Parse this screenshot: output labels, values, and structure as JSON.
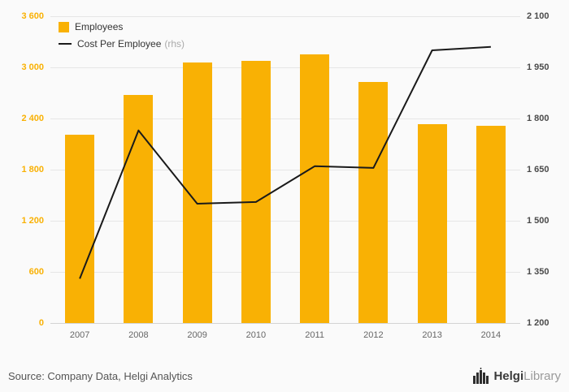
{
  "chart_data": {
    "type": "bar",
    "categories": [
      "2007",
      "2008",
      "2009",
      "2010",
      "2011",
      "2012",
      "2013",
      "2014"
    ],
    "series": [
      {
        "name": "Employees",
        "type": "bar",
        "axis": "left",
        "color": "#F9B104",
        "values": [
          2210,
          2680,
          3060,
          3080,
          3150,
          2830,
          2330,
          2310
        ]
      },
      {
        "name": "Cost Per Employee",
        "name_suffix": "(rhs)",
        "type": "line",
        "axis": "right",
        "color": "#1a1a1a",
        "values": [
          1330,
          1765,
          1550,
          1555,
          1660,
          1655,
          2000,
          2010
        ]
      }
    ],
    "left_axis": {
      "min": 0,
      "max": 3600,
      "tick_values": [
        0,
        600,
        1200,
        1800,
        2400,
        3000,
        3600
      ],
      "tick_labels": [
        "0",
        "600",
        "1 200",
        "1 800",
        "2 400",
        "3 000",
        "3 600"
      ],
      "color": "#F9B104"
    },
    "right_axis": {
      "min": 1200,
      "max": 2100,
      "tick_values": [
        1200,
        1350,
        1500,
        1650,
        1800,
        1950,
        2100
      ],
      "tick_labels": [
        "1 200",
        "1 350",
        "1 500",
        "1 650",
        "1 800",
        "1 950",
        "2 100"
      ],
      "color": "#4a4a4a"
    },
    "grid": true,
    "legend_position": "top-left",
    "title": "",
    "xlabel": "",
    "ylabel": ""
  },
  "legend": {
    "employees_label": "Employees",
    "cost_label": "Cost Per Employee",
    "cost_suffix": "(rhs)"
  },
  "footer": {
    "source": "Source: Company Data, Helgi Analytics",
    "brand_bold": "Helgi",
    "brand_light": "Library"
  }
}
